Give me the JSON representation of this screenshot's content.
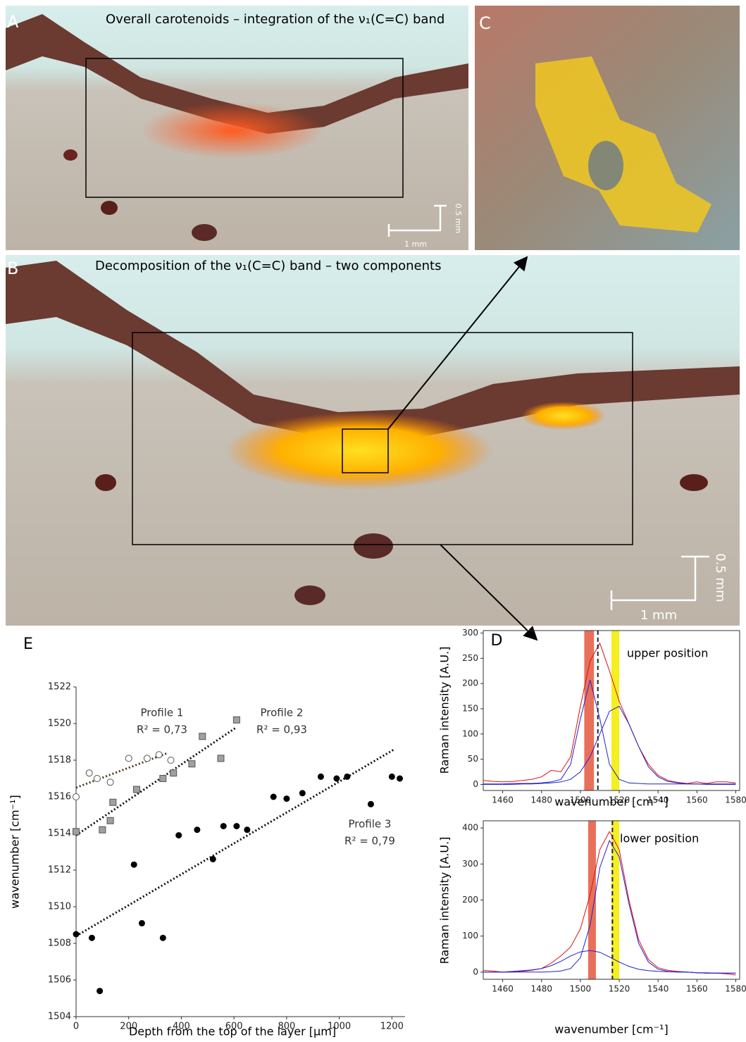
{
  "panels": {
    "A": {
      "label": "A",
      "title": "Overall carotenoids – integration of the ν₁(C=C) band",
      "scale_y": "0.5 mm",
      "scale_x": "1 mm"
    },
    "B": {
      "label": "B",
      "title": "Decomposition of the ν₁(C=C) band – two components",
      "scale_y": "0.5 mm",
      "scale_x": "1 mm"
    },
    "C": {
      "label": "C"
    }
  },
  "chart_data": [
    {
      "type": "scatter",
      "panel_label": "E",
      "x_label": "Depth from the top of the layer [μm]",
      "y_label": "wavenumber [cm⁻¹]",
      "xlim": [
        0,
        1250
      ],
      "ylim": [
        1504,
        1522
      ],
      "xticks": [
        0,
        200,
        400,
        600,
        800,
        1000,
        1200
      ],
      "yticks": [
        1504,
        1506,
        1508,
        1510,
        1512,
        1514,
        1516,
        1518,
        1520,
        1522
      ],
      "series": [
        {
          "name": "Profile 1",
          "annotation": "R² = 0,73",
          "marker": "open-circle",
          "color": "#555555",
          "x": [
            0,
            50,
            80,
            130,
            200,
            270,
            315,
            360
          ],
          "values": [
            1516.0,
            1517.3,
            1517.0,
            1516.8,
            1518.1,
            1518.1,
            1518.3,
            1518.0
          ],
          "trend_x": [
            0,
            350
          ],
          "trend_values": [
            1516.5,
            1518.4
          ],
          "trend_color": "#4a3a1a"
        },
        {
          "name": "Profile 2",
          "annotation": "R² = 0,93",
          "marker": "square",
          "color": "#a0a0a0",
          "x": [
            0,
            100,
            130,
            140,
            230,
            330,
            370,
            440,
            480,
            550,
            610
          ],
          "values": [
            1514.1,
            1514.2,
            1514.7,
            1515.7,
            1516.4,
            1517.0,
            1517.3,
            1517.8,
            1519.3,
            1518.1,
            1520.2
          ],
          "trend_x": [
            0,
            610
          ],
          "trend_values": [
            1513.9,
            1519.8
          ],
          "trend_color": "#111111"
        },
        {
          "name": "Profile 3",
          "annotation": "R² = 0,79",
          "marker": "filled-circle",
          "color": "#000000",
          "x": [
            0,
            60,
            90,
            220,
            250,
            330,
            390,
            460,
            520,
            560,
            610,
            650,
            750,
            800,
            860,
            930,
            990,
            1030,
            1120,
            1200,
            1230
          ],
          "values": [
            1508.5,
            1508.3,
            1505.4,
            1512.3,
            1509.1,
            1508.3,
            1513.9,
            1514.2,
            1512.6,
            1514.4,
            1514.4,
            1514.2,
            1516.0,
            1515.9,
            1516.2,
            1517.1,
            1517.0,
            1517.1,
            1515.6,
            1517.1,
            1517.0
          ],
          "trend_x": [
            0,
            1210
          ],
          "trend_values": [
            1508.4,
            1518.6
          ],
          "trend_color": "#111111"
        }
      ]
    },
    {
      "type": "line",
      "panel_label": "D",
      "annotation": "upper position",
      "x_label": "wavenumber [cm⁻¹]",
      "y_label": "Raman intensity [A.U.]",
      "xlim": [
        1450,
        1582
      ],
      "ylim": [
        -12,
        305
      ],
      "xticks": [
        1460,
        1480,
        1500,
        1520,
        1540,
        1560,
        1580
      ],
      "yticks": [
        0,
        50,
        100,
        150,
        200,
        250,
        300
      ],
      "bands": [
        {
          "range": [
            1502,
            1507
          ],
          "color": "#e8705a"
        },
        {
          "range": [
            1516,
            1520
          ],
          "color": "#f5ef20"
        }
      ],
      "vline": 1509,
      "x": [
        1450,
        1455,
        1460,
        1465,
        1470,
        1475,
        1480,
        1485,
        1490,
        1495,
        1500,
        1505,
        1510,
        1515,
        1520,
        1525,
        1530,
        1535,
        1540,
        1545,
        1550,
        1555,
        1560,
        1565,
        1570,
        1575,
        1580
      ],
      "series": [
        {
          "color": "#dd1111",
          "values": [
            8,
            6,
            5,
            6,
            8,
            10,
            15,
            28,
            25,
            55,
            155,
            245,
            280,
            225,
            165,
            120,
            75,
            40,
            18,
            8,
            4,
            2,
            5,
            2,
            5,
            5,
            3
          ]
        },
        {
          "color": "#2222cc",
          "values": [
            1,
            1,
            1,
            2,
            2,
            2,
            3,
            5,
            10,
            40,
            130,
            207,
            130,
            40,
            10,
            3,
            2,
            1,
            1,
            1,
            1,
            1,
            1,
            1,
            1,
            1,
            1
          ]
        },
        {
          "color": "#2222cc",
          "values": [
            0,
            0,
            0,
            0,
            1,
            1,
            2,
            3,
            5,
            10,
            25,
            55,
            100,
            145,
            155,
            120,
            75,
            35,
            15,
            6,
            3,
            1,
            1,
            0,
            0,
            0,
            0
          ]
        }
      ]
    },
    {
      "type": "line",
      "annotation": "lower position",
      "x_label": "wavenumber [cm⁻¹]",
      "y_label": "Raman intensity [A.U.]",
      "xlim": [
        1450,
        1582
      ],
      "ylim": [
        -20,
        420
      ],
      "xticks": [
        1460,
        1480,
        1500,
        1520,
        1540,
        1560,
        1580
      ],
      "yticks": [
        0,
        100,
        200,
        300,
        400
      ],
      "bands": [
        {
          "range": [
            1504,
            1508
          ],
          "color": "#e8705a"
        },
        {
          "range": [
            1516,
            1520
          ],
          "color": "#f5ef20"
        }
      ],
      "vline": 1516.5,
      "x": [
        1450,
        1455,
        1460,
        1465,
        1470,
        1475,
        1480,
        1485,
        1490,
        1495,
        1500,
        1505,
        1510,
        1515,
        1520,
        1525,
        1530,
        1535,
        1540,
        1545,
        1550,
        1555,
        1560,
        1565,
        1570,
        1575,
        1580
      ],
      "series": [
        {
          "color": "#dd1111",
          "values": [
            5,
            3,
            0,
            0,
            2,
            5,
            10,
            25,
            45,
            70,
            120,
            215,
            340,
            390,
            340,
            200,
            90,
            35,
            12,
            5,
            2,
            0,
            -2,
            -3,
            -3,
            -5,
            -8
          ]
        },
        {
          "color": "#2222cc",
          "values": [
            0,
            0,
            0,
            2,
            4,
            6,
            10,
            18,
            30,
            45,
            56,
            60,
            55,
            42,
            28,
            16,
            8,
            4,
            2,
            1,
            0,
            0,
            -2,
            -2,
            -3,
            -3,
            -3
          ]
        },
        {
          "color": "#2222cc",
          "values": [
            0,
            0,
            0,
            0,
            0,
            0,
            0,
            1,
            3,
            10,
            40,
            130,
            290,
            365,
            320,
            190,
            80,
            28,
            8,
            2,
            0,
            0,
            -2,
            -3,
            -3,
            -3,
            -3
          ]
        }
      ]
    }
  ]
}
